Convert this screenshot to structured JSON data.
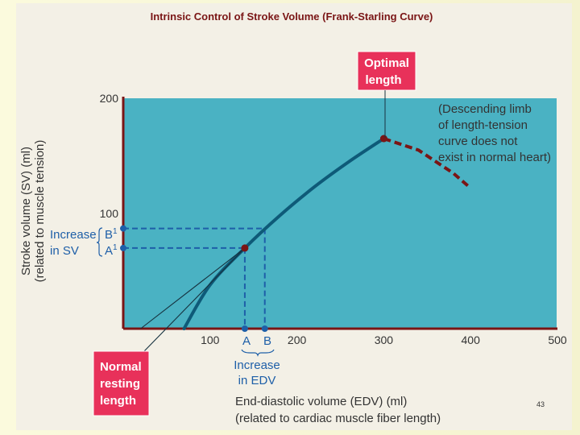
{
  "title": "Intrinsic Control of Stroke Volume (Frank-Starling Curve)",
  "y_axis_label_1": "Stroke volume (SV) (ml)",
  "y_axis_label_2": "(related to muscle tension)",
  "x_axis_label_1": "End-diastolic volume (EDV) (ml)",
  "x_axis_label_2": "(related to cardiac muscle fiber length)",
  "optimal_length": [
    "Optimal",
    "length"
  ],
  "normal_resting_length": [
    "Normal",
    "resting",
    "length"
  ],
  "descending_note": [
    "(Descending limb",
    "of length-tension",
    "curve does not",
    "exist in normal heart)"
  ],
  "increase_sv": [
    "Increase",
    "in SV"
  ],
  "increase_edv": [
    "Increase",
    "in EDV"
  ],
  "point_a": "A",
  "point_b": "B",
  "point_a1": "A",
  "point_b1": "B",
  "superscript": "1",
  "page_number": "43",
  "colors": {
    "plot_bg": "#4ab2c3",
    "curve": "#0e5a78",
    "descending": "#7a1515",
    "guide": "#1e5fa8",
    "label_box": "#e8315a",
    "axis": "#7a1515"
  },
  "chart_data": {
    "type": "line",
    "title": "Intrinsic Control of Stroke Volume (Frank-Starling Curve)",
    "xlabel": "End-diastolic volume (EDV) (ml)",
    "ylabel": "Stroke volume (SV) (ml)",
    "xlim": [
      0,
      500
    ],
    "ylim": [
      0,
      200
    ],
    "x_ticks": [
      100,
      200,
      300,
      400,
      500
    ],
    "y_ticks": [
      100,
      200
    ],
    "series": [
      {
        "name": "Frank-Starling curve",
        "style": "solid",
        "x": [
          70,
          100,
          140,
          180,
          220,
          260,
          300
        ],
        "y": [
          0,
          38,
          70,
          98,
          123,
          145,
          165
        ]
      },
      {
        "name": "Descending limb",
        "style": "dashed",
        "x": [
          300,
          340,
          380,
          400
        ],
        "y": [
          165,
          155,
          135,
          122
        ]
      },
      {
        "name": "Tangent through A",
        "style": "thin",
        "x": [
          20,
          140
        ],
        "y": [
          0,
          70
        ]
      }
    ],
    "points": [
      {
        "name": "A",
        "x": 140,
        "y": 70
      },
      {
        "name": "B",
        "x": 163,
        "y": 87
      },
      {
        "name": "Optimal length",
        "x": 300,
        "y": 165
      }
    ]
  }
}
